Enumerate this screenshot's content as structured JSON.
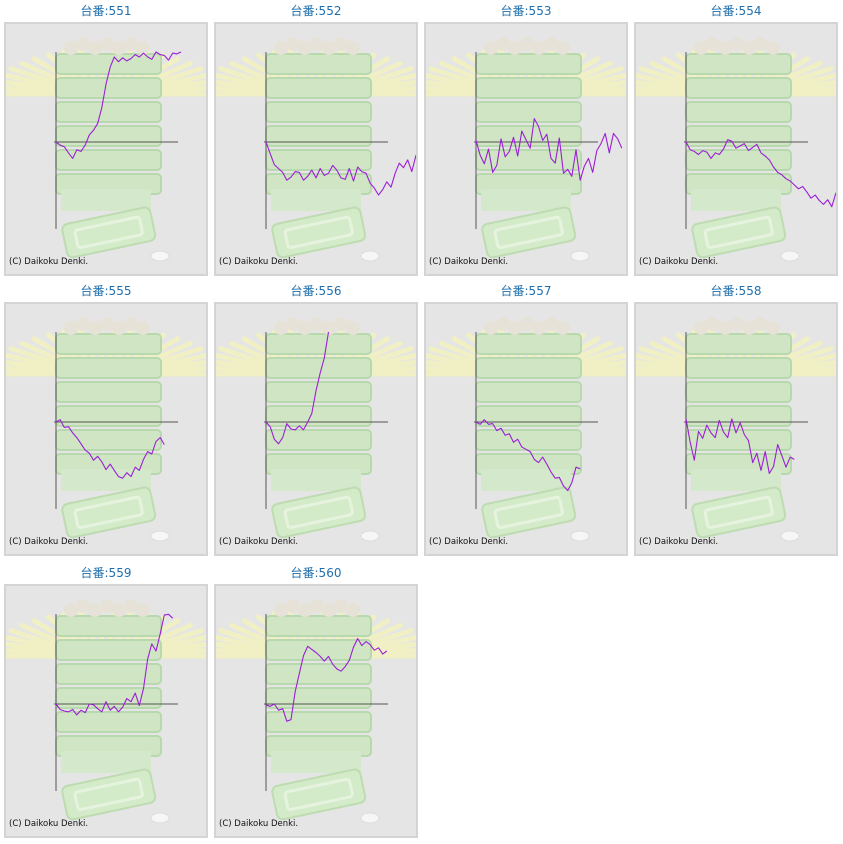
{
  "colors": {
    "title": "#1f6fae",
    "line": "#9b1fd6",
    "axis": "#555555",
    "panel": "#e5e5e5",
    "border": "#d4d4d4"
  },
  "graphs": [
    {
      "label": "台番:551",
      "copyright": "(C) Daikoku Denki.",
      "chart_data": {
        "type": "line",
        "y": [
          0,
          -4,
          -6,
          -14,
          -21,
          -10,
          -12,
          -4,
          9,
          15,
          24,
          44,
          74,
          96,
          109,
          103,
          108,
          104,
          107,
          112,
          109,
          114,
          109,
          106,
          118,
          112,
          111,
          105,
          114,
          113,
          116
        ]
      }
    },
    {
      "label": "台番:552",
      "copyright": "(C) Daikoku Denki.",
      "chart_data": {
        "type": "line",
        "y": [
          0,
          -15,
          -29,
          -34,
          -39,
          -49,
          -45,
          -38,
          -39,
          -49,
          -44,
          -36,
          -46,
          -34,
          -43,
          -40,
          -30,
          -36,
          -46,
          -48,
          -34,
          -50,
          -32,
          -38,
          -40,
          -53,
          -59,
          -68,
          -61,
          -51,
          -58,
          -40,
          -27,
          -33,
          -23,
          -38,
          -17,
          -14,
          -4,
          -13,
          -10,
          15
        ]
      }
    },
    {
      "label": "台番:553",
      "copyright": "(C) Daikoku Denki.",
      "chart_data": {
        "type": "line",
        "y": [
          2,
          -17,
          -28,
          -9,
          -39,
          -30,
          4,
          -19,
          -12,
          6,
          -18,
          14,
          3,
          -8,
          30,
          20,
          2,
          10,
          -21,
          -27,
          5,
          -40,
          -35,
          -44,
          -10,
          -49,
          -31,
          -21,
          -39,
          -11,
          -2,
          11,
          -14,
          11,
          4,
          -8
        ]
      }
    },
    {
      "label": "台番:554",
      "copyright": "(C) Daikoku Denki.",
      "chart_data": {
        "type": "line",
        "y": [
          0,
          -10,
          -12,
          -16,
          -11,
          -13,
          -21,
          -14,
          -16,
          -9,
          3,
          1,
          -8,
          -5,
          -2,
          -11,
          -7,
          -3,
          -14,
          -18,
          -23,
          -32,
          -39,
          -42,
          -47,
          -50,
          -55,
          -60,
          -57,
          -64,
          -72,
          -68,
          -75,
          -80,
          -74,
          -83,
          -65
        ]
      }
    },
    {
      "label": "台番:555",
      "copyright": "(C) Daikoku Denki.",
      "chart_data": {
        "type": "line",
        "y": [
          0,
          3,
          -7,
          -6,
          -14,
          -20,
          -28,
          -36,
          -40,
          -49,
          -44,
          -51,
          -61,
          -54,
          -62,
          -70,
          -72,
          -65,
          -70,
          -58,
          -62,
          -48,
          -38,
          -41,
          -25,
          -20,
          -29
        ]
      }
    },
    {
      "label": "台番:556",
      "copyright": "(C) Daikoku Denki.",
      "chart_data": {
        "type": "line",
        "y": [
          0,
          -6,
          -22,
          -28,
          -20,
          -2,
          -9,
          -10,
          -5,
          -10,
          0,
          11,
          40,
          63,
          82,
          118
        ]
      }
    },
    {
      "label": "台番:557",
      "copyright": "(C) Daikoku Denki.",
      "chart_data": {
        "type": "line",
        "y": [
          0,
          -3,
          3,
          -3,
          -2,
          -11,
          -8,
          -17,
          -15,
          -26,
          -22,
          -32,
          -35,
          -38,
          -48,
          -52,
          -45,
          -54,
          -64,
          -72,
          -71,
          -82,
          -88,
          -78,
          -58,
          -60
        ]
      }
    },
    {
      "label": "台番:558",
      "copyright": "(C) Daikoku Denki.",
      "chart_data": {
        "type": "line",
        "y": [
          4,
          -26,
          -49,
          -12,
          -21,
          -4,
          -14,
          -20,
          2,
          -13,
          -20,
          4,
          -14,
          -1,
          -16,
          -24,
          -52,
          -40,
          -62,
          -38,
          -66,
          -57,
          -29,
          -43,
          -58,
          -45,
          -48
        ]
      }
    },
    {
      "label": "台番:559",
      "copyright": "(C) Daikoku Denki.",
      "chart_data": {
        "type": "line",
        "y": [
          0,
          -7,
          -9,
          -10,
          -7,
          -14,
          -8,
          -11,
          0,
          -1,
          -6,
          -10,
          3,
          -8,
          -3,
          -10,
          -4,
          7,
          3,
          14,
          -2,
          20,
          58,
          77,
          68,
          90,
          114,
          115,
          110
        ]
      }
    },
    {
      "label": "台番:560",
      "copyright": "(C) Daikoku Denki.",
      "chart_data": {
        "type": "line",
        "y": [
          -1,
          -3,
          0,
          -8,
          -6,
          -22,
          -20,
          16,
          39,
          62,
          74,
          70,
          66,
          61,
          55,
          61,
          51,
          45,
          42,
          48,
          56,
          73,
          84,
          75,
          80,
          76,
          69,
          72,
          64,
          68
        ]
      }
    }
  ]
}
